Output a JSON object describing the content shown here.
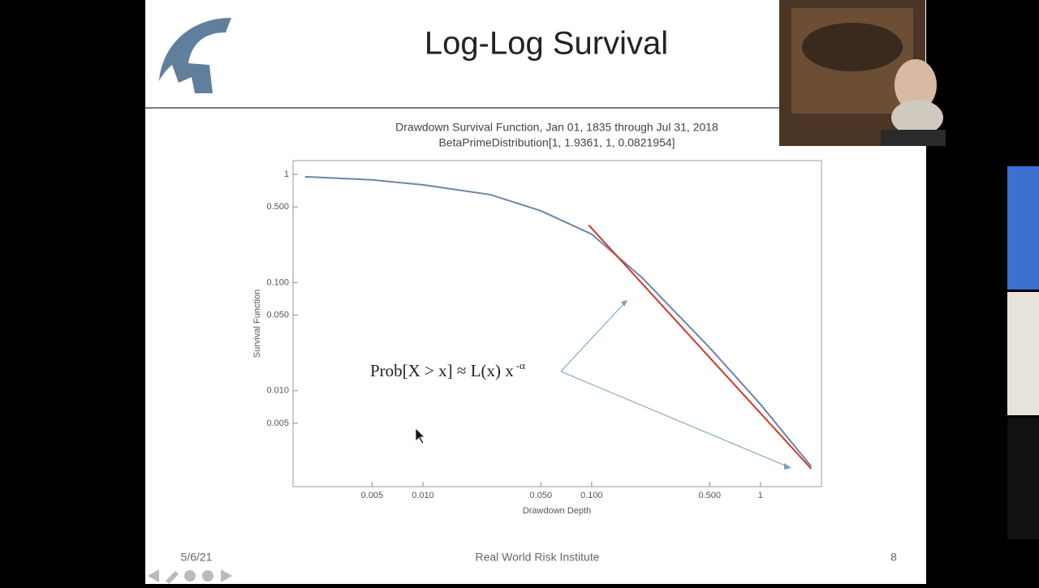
{
  "slide": {
    "title": "Log-Log Survival",
    "date": "5/6/21",
    "footer": "Real World Risk Institute",
    "page_number": "8"
  },
  "chart_data": {
    "type": "line",
    "title": "Drawdown Survival Function, Jan 01, 1835 through Jul 31, 2018",
    "subtitle": "BetaPrimeDistribution[1, 1.9361, 1, 0.0821954]",
    "x_label": "Drawdown Depth",
    "y_label": "Survival Function",
    "xscale": "log",
    "yscale": "log",
    "xlim": [
      0.0017,
      2.3
    ],
    "ylim": [
      0.0013,
      1.34
    ],
    "xticks": [
      0.005,
      {
        "value": 0.01,
        "label": "0.010"
      },
      {
        "value": 0.05,
        "label": "0.050"
      },
      {
        "value": 0.1,
        "label": "0.100"
      },
      {
        "value": 0.5,
        "label": "0.500"
      },
      1
    ],
    "yticks": [
      1,
      {
        "value": 0.5,
        "label": "0.500"
      },
      {
        "value": 0.1,
        "label": "0.100"
      },
      {
        "value": 0.05,
        "label": "0.050"
      },
      {
        "value": 0.01,
        "label": "0.010"
      },
      0.005
    ],
    "series": [
      {
        "color": "#6a85a8",
        "x": [
          0.002,
          0.005,
          0.01,
          0.025,
          0.05,
          0.1,
          0.2,
          0.5,
          1,
          2
        ],
        "values": [
          0.95,
          0.89,
          0.8,
          0.65,
          0.46,
          0.28,
          0.11,
          0.025,
          0.0075,
          0.002
        ]
      },
      {
        "color": "#d0382a",
        "x": [
          0.096,
          2
        ],
        "values": [
          0.34,
          0.0019
        ]
      }
    ],
    "annotation": {
      "text": "Prob[X > x] ≈ L(x) x",
      "superscript": "-α"
    }
  }
}
